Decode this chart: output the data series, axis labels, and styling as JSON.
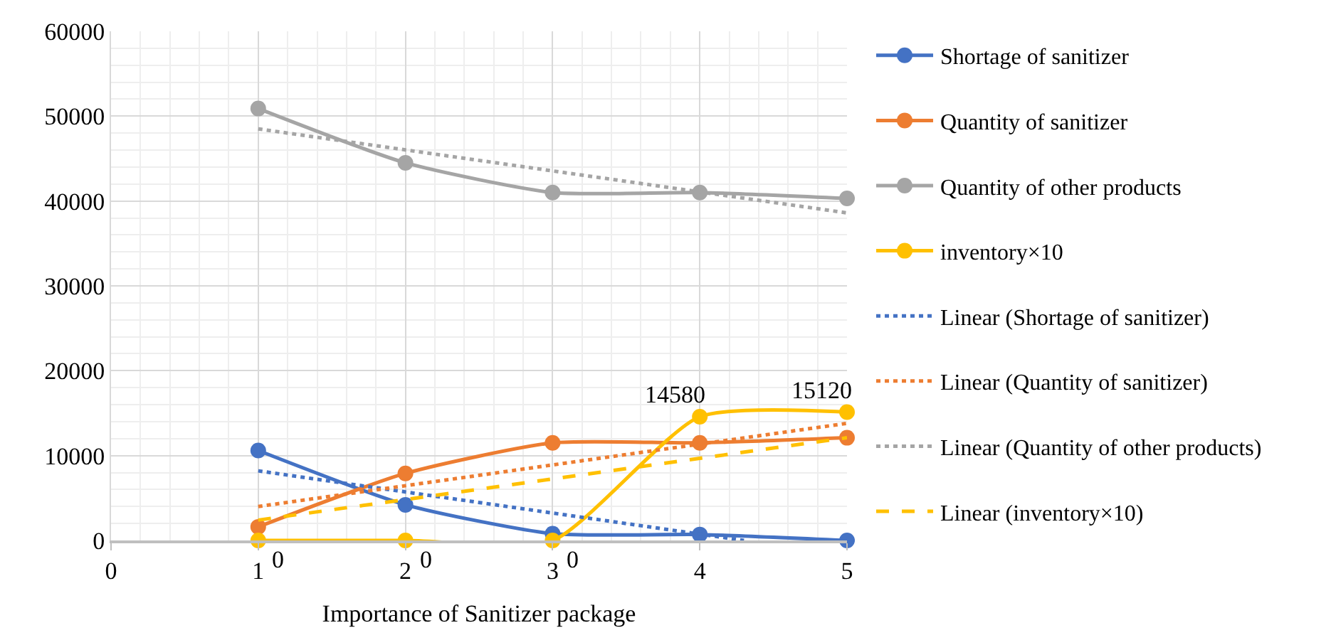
{
  "chart_data": {
    "type": "line",
    "xlabel": "Importance of Sanitizer package",
    "x": [
      1,
      2,
      3,
      4,
      5
    ],
    "xlim": [
      0,
      5
    ],
    "xticks": [
      0,
      1,
      2,
      3,
      4,
      5
    ],
    "ylim": [
      0,
      60000
    ],
    "yticks": [
      0,
      10000,
      20000,
      30000,
      40000,
      50000,
      60000
    ],
    "grid": true,
    "legend": "right",
    "marker": "circle",
    "line_style": "solid",
    "series": [
      {
        "name": "Shortage of sanitizer",
        "color": "#4472c4",
        "values": [
          10600,
          4200,
          800,
          700,
          0
        ]
      },
      {
        "name": "Quantity of sanitizer",
        "color": "#ed7d31",
        "values": [
          1600,
          7900,
          11500,
          11500,
          12100
        ]
      },
      {
        "name": "Quantity of other products",
        "color": "#a5a5a5",
        "values": [
          50900,
          44500,
          41000,
          41000,
          40300
        ]
      },
      {
        "name": "inventory×10",
        "color": "#ffc000",
        "values": [
          0,
          0,
          0,
          14580,
          15120
        ],
        "value_labels": [
          "0",
          "0",
          "0",
          "14580",
          "15120"
        ]
      },
      {
        "name": "Linear (Shortage of sanitizer)",
        "color": "#4472c4",
        "x": [
          1,
          4.3
        ],
        "values": [
          8200,
          0
        ],
        "marker": "none",
        "line_style": "dotted"
      },
      {
        "name": "Linear (Quantity of sanitizer)",
        "color": "#ed7d31",
        "x": [
          1,
          5
        ],
        "values": [
          4000,
          13800
        ],
        "marker": "none",
        "line_style": "dotted"
      },
      {
        "name": "Linear (Quantity of other products)",
        "color": "#a5a5a5",
        "x": [
          1,
          5
        ],
        "values": [
          48500,
          38600
        ],
        "marker": "none",
        "line_style": "dotted"
      },
      {
        "name": "Linear (inventory×10)",
        "color": "#ffc000",
        "x": [
          1,
          5
        ],
        "values": [
          2400,
          12100
        ],
        "marker": "none",
        "line_style": "dashed"
      }
    ]
  }
}
